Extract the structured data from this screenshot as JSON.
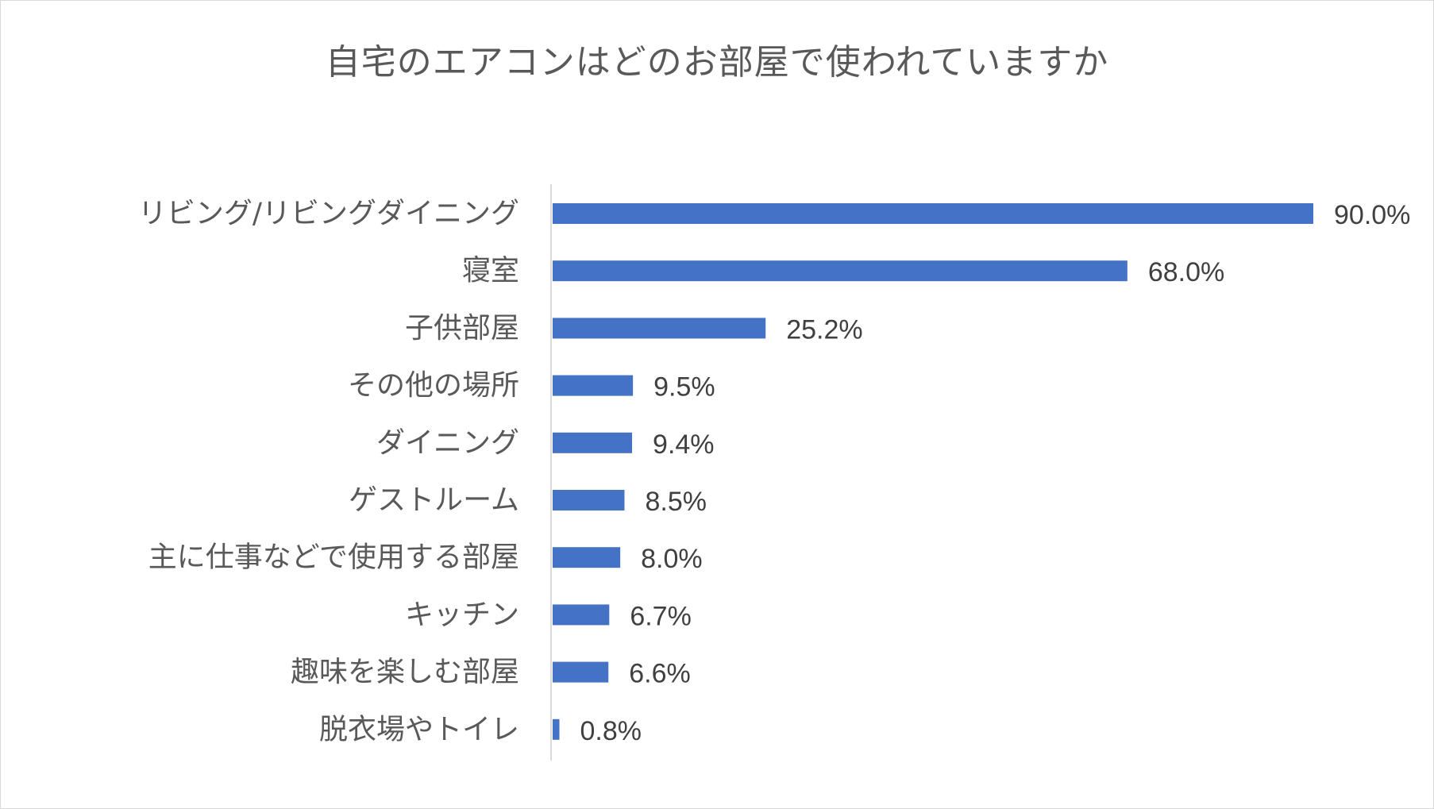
{
  "chart_data": {
    "type": "bar",
    "orientation": "horizontal",
    "title": "自宅のエアコンはどのお部屋で使われていますか",
    "categories": [
      "リビング/リビングダイニング",
      "寝室",
      "子供部屋",
      "その他の場所",
      "ダイニング",
      "ゲストルーム",
      "主に仕事などで使用する部屋",
      "キッチン",
      "趣味を楽しむ部屋",
      "脱衣場やトイレ"
    ],
    "values": [
      90.0,
      68.0,
      25.2,
      9.5,
      9.4,
      8.5,
      8.0,
      6.7,
      6.6,
      0.8
    ],
    "value_labels": [
      "90.0%",
      "68.0%",
      "25.2%",
      "9.5%",
      "9.4%",
      "8.5%",
      "8.0%",
      "6.7%",
      "6.6%",
      "0.8%"
    ],
    "unit": "%",
    "xlim": [
      0,
      90
    ],
    "bar_color": "#4472C4",
    "axis_color": "#d9d9d9",
    "grid": false,
    "legend": "none",
    "xlabel": "",
    "ylabel": ""
  }
}
